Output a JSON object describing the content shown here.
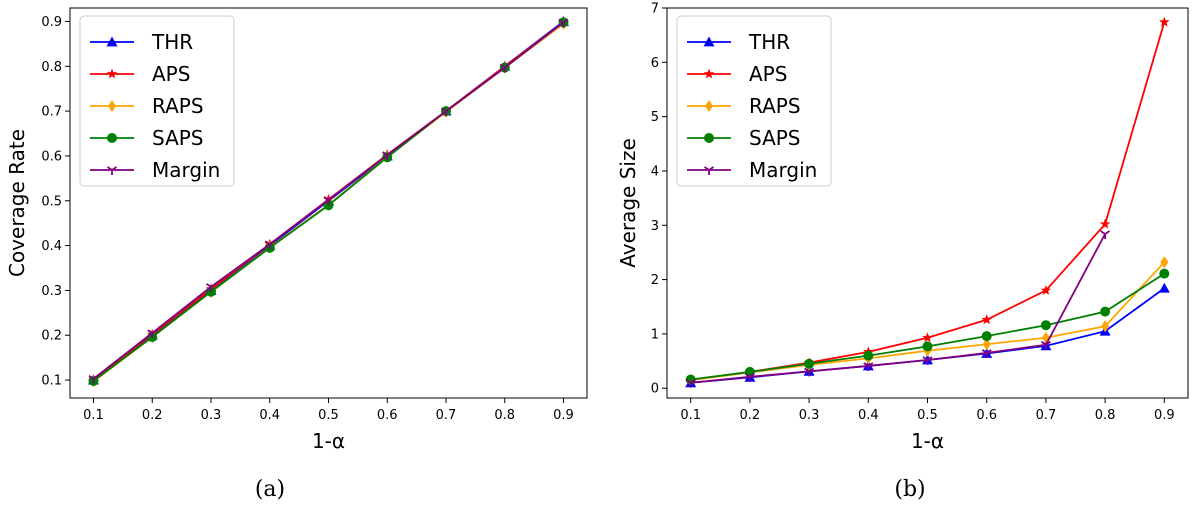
{
  "colors": {
    "THR": "#0000ff",
    "APS": "#ff0000",
    "RAPS": "#ffa500",
    "SAPS": "#008000",
    "Margin": "#800080"
  },
  "chart_data": [
    {
      "type": "line",
      "caption": "(a)",
      "xlabel": "1-α",
      "ylabel": "Coverage Rate",
      "xlim": [
        0.06,
        0.94
      ],
      "ylim": [
        0.06,
        0.93
      ],
      "xticks": [
        "0.1",
        "0.2",
        "0.3",
        "0.4",
        "0.5",
        "0.6",
        "0.7",
        "0.8",
        "0.9"
      ],
      "yticks": [
        "0.1",
        "0.2",
        "0.3",
        "0.4",
        "0.5",
        "0.6",
        "0.7",
        "0.8",
        "0.9"
      ],
      "legend_position": "upper-left",
      "x": [
        0.1,
        0.2,
        0.3,
        0.4,
        0.5,
        0.6,
        0.7,
        0.8,
        0.9
      ],
      "series": [
        {
          "name": "THR",
          "marker": "triangle-up",
          "values": [
            0.1,
            0.2,
            0.3,
            0.4,
            0.5,
            0.6,
            0.7,
            0.8,
            0.9
          ]
        },
        {
          "name": "APS",
          "marker": "star",
          "values": [
            0.101,
            0.202,
            0.303,
            0.403,
            0.503,
            0.603,
            0.7,
            0.8,
            0.898
          ]
        },
        {
          "name": "RAPS",
          "marker": "diamond",
          "values": [
            0.097,
            0.196,
            0.297,
            0.396,
            0.491,
            0.598,
            0.698,
            0.797,
            0.895
          ]
        },
        {
          "name": "SAPS",
          "marker": "circle",
          "values": [
            0.098,
            0.196,
            0.297,
            0.395,
            0.49,
            0.597,
            0.7,
            0.797,
            0.898
          ]
        },
        {
          "name": "Margin",
          "marker": "tri-down",
          "values": [
            0.103,
            0.205,
            0.308,
            0.403,
            0.502,
            0.602,
            0.7,
            0.797,
            0.898
          ]
        }
      ]
    },
    {
      "type": "line",
      "caption": "(b)",
      "xlabel": "1-α",
      "ylabel": "Average Size",
      "xlim": [
        0.06,
        0.94
      ],
      "ylim": [
        -0.18,
        7.0
      ],
      "xticks": [
        "0.1",
        "0.2",
        "0.3",
        "0.4",
        "0.5",
        "0.6",
        "0.7",
        "0.8",
        "0.9"
      ],
      "yticks": [
        "0",
        "1",
        "2",
        "3",
        "4",
        "5",
        "6",
        "7"
      ],
      "legend_position": "upper-left",
      "x": [
        0.1,
        0.2,
        0.3,
        0.4,
        0.5,
        0.6,
        0.7,
        0.8,
        0.9
      ],
      "series": [
        {
          "name": "THR",
          "marker": "triangle-up",
          "values": [
            0.1,
            0.2,
            0.31,
            0.41,
            0.52,
            0.64,
            0.78,
            1.05,
            1.84
          ]
        },
        {
          "name": "APS",
          "marker": "star",
          "values": [
            0.15,
            0.3,
            0.47,
            0.67,
            0.93,
            1.26,
            1.8,
            3.02,
            6.74
          ]
        },
        {
          "name": "RAPS",
          "marker": "diamond",
          "values": [
            0.15,
            0.29,
            0.43,
            0.55,
            0.69,
            0.81,
            0.93,
            1.14,
            2.32
          ]
        },
        {
          "name": "SAPS",
          "marker": "circle",
          "values": [
            0.16,
            0.3,
            0.45,
            0.6,
            0.77,
            0.96,
            1.16,
            1.41,
            2.11
          ]
        },
        {
          "name": "Margin",
          "marker": "tri-down",
          "values": [
            0.1,
            0.21,
            0.31,
            0.41,
            0.52,
            0.65,
            0.8,
            2.84,
            null
          ]
        }
      ]
    }
  ]
}
